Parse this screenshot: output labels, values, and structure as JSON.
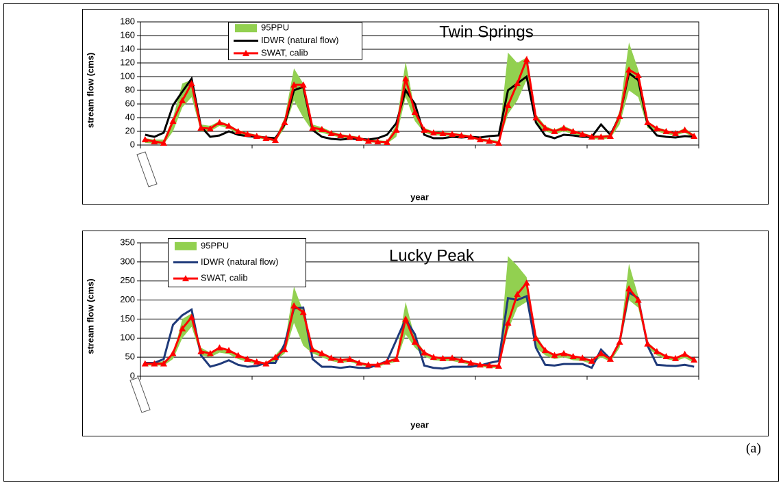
{
  "chart_data": [
    {
      "type": "line",
      "title": "Twin Springs",
      "ylabel": "stream flow (cms)",
      "xlabel": "year",
      "ylim": [
        0,
        180
      ],
      "yticks": [
        0,
        20,
        40,
        60,
        80,
        100,
        120,
        140,
        160,
        180
      ],
      "series": [
        {
          "name": "95PPU",
          "color": "#92d050",
          "upper": [
            10,
            8,
            8,
            40,
            90,
            95,
            30,
            28,
            35,
            30,
            22,
            18,
            15,
            12,
            10,
            40,
            112,
            90,
            30,
            26,
            20,
            16,
            14,
            12,
            8,
            7,
            6,
            30,
            122,
            50,
            25,
            20,
            19,
            18,
            16,
            14,
            10,
            8,
            6,
            135,
            120,
            128,
            45,
            28,
            22,
            28,
            22,
            18,
            14,
            14,
            15,
            50,
            150,
            110,
            35,
            26,
            22,
            18,
            25,
            15
          ],
          "lower": [
            3,
            2,
            1,
            20,
            55,
            70,
            20,
            20,
            28,
            24,
            16,
            13,
            10,
            8,
            5,
            25,
            65,
            40,
            20,
            18,
            14,
            11,
            9,
            8,
            4,
            3,
            2,
            12,
            70,
            35,
            18,
            14,
            14,
            13,
            12,
            10,
            6,
            4,
            2,
            45,
            65,
            95,
            30,
            20,
            16,
            20,
            16,
            12,
            9,
            8,
            10,
            30,
            80,
            70,
            25,
            20,
            16,
            14,
            18,
            10
          ]
        },
        {
          "name": "IDWR (natural flow)",
          "color": "#000000",
          "values": [
            15,
            12,
            18,
            58,
            78,
            97,
            27,
            12,
            14,
            20,
            15,
            13,
            12,
            11,
            10,
            30,
            80,
            85,
            22,
            12,
            9,
            8,
            9,
            9,
            8,
            10,
            15,
            32,
            80,
            60,
            15,
            10,
            10,
            12,
            11,
            12,
            11,
            13,
            14,
            80,
            90,
            100,
            33,
            14,
            10,
            15,
            14,
            12,
            12,
            30,
            15,
            42,
            105,
            95,
            30,
            14,
            12,
            11,
            13,
            12
          ]
        },
        {
          "name": "SWAT, calib",
          "color": "#ff0000",
          "marker": "triangle",
          "values": [
            8,
            5,
            3,
            35,
            65,
            90,
            25,
            24,
            33,
            28,
            20,
            16,
            13,
            10,
            7,
            33,
            88,
            88,
            25,
            23,
            17,
            14,
            12,
            10,
            6,
            5,
            4,
            22,
            97,
            48,
            22,
            18,
            17,
            16,
            14,
            12,
            8,
            6,
            3,
            58,
            90,
            125,
            40,
            25,
            20,
            25,
            20,
            16,
            12,
            12,
            13,
            42,
            110,
            102,
            33,
            24,
            20,
            17,
            22,
            13
          ]
        }
      ]
    },
    {
      "type": "line",
      "title": "Lucky Peak",
      "ylabel": "stream flow (cms)",
      "xlabel": "year",
      "ylim": [
        0,
        350
      ],
      "yticks": [
        0,
        50,
        100,
        150,
        200,
        250,
        300,
        350
      ],
      "series": [
        {
          "name": "95PPU",
          "color": "#92d050",
          "upper": [
            35,
            35,
            40,
            55,
            150,
            165,
            75,
            62,
            75,
            68,
            55,
            48,
            40,
            35,
            55,
            85,
            235,
            170,
            75,
            62,
            50,
            45,
            48,
            38,
            32,
            32,
            40,
            50,
            195,
            100,
            65,
            52,
            50,
            50,
            45,
            38,
            32,
            30,
            30,
            315,
            290,
            260,
            110,
            70,
            58,
            62,
            55,
            50,
            42,
            62,
            48,
            95,
            295,
            210,
            90,
            68,
            55,
            50,
            60,
            46
          ],
          "lower": [
            28,
            28,
            28,
            45,
            100,
            130,
            55,
            50,
            62,
            58,
            45,
            38,
            32,
            28,
            40,
            60,
            140,
            80,
            60,
            50,
            40,
            35,
            38,
            30,
            25,
            25,
            32,
            38,
            110,
            75,
            52,
            42,
            40,
            40,
            35,
            30,
            25,
            22,
            22,
            120,
            180,
            195,
            75,
            55,
            45,
            50,
            42,
            40,
            32,
            50,
            38,
            75,
            200,
            180,
            75,
            55,
            45,
            40,
            48,
            35
          ]
        },
        {
          "name": "IDWR (natural flow)",
          "color": "#1f3a7a",
          "values": [
            35,
            35,
            45,
            135,
            160,
            175,
            55,
            25,
            32,
            42,
            30,
            25,
            27,
            35,
            35,
            85,
            178,
            180,
            45,
            25,
            25,
            22,
            25,
            22,
            22,
            30,
            40,
            95,
            150,
            110,
            28,
            22,
            20,
            25,
            25,
            25,
            28,
            35,
            40,
            205,
            200,
            210,
            75,
            30,
            28,
            32,
            32,
            32,
            22,
            70,
            45,
            90,
            220,
            205,
            80,
            30,
            28,
            27,
            30,
            25
          ]
        },
        {
          "name": "SWAT, calib",
          "color": "#ff0000",
          "marker": "triangle",
          "values": [
            33,
            33,
            33,
            60,
            125,
            155,
            65,
            60,
            75,
            68,
            55,
            45,
            38,
            33,
            50,
            70,
            185,
            168,
            70,
            60,
            48,
            42,
            45,
            35,
            30,
            30,
            38,
            45,
            150,
            90,
            62,
            50,
            47,
            48,
            42,
            35,
            30,
            28,
            27,
            140,
            215,
            245,
            100,
            68,
            55,
            60,
            52,
            48,
            40,
            60,
            45,
            90,
            230,
            200,
            85,
            65,
            52,
            47,
            58,
            43
          ]
        }
      ]
    }
  ],
  "panel_label": "(a)"
}
